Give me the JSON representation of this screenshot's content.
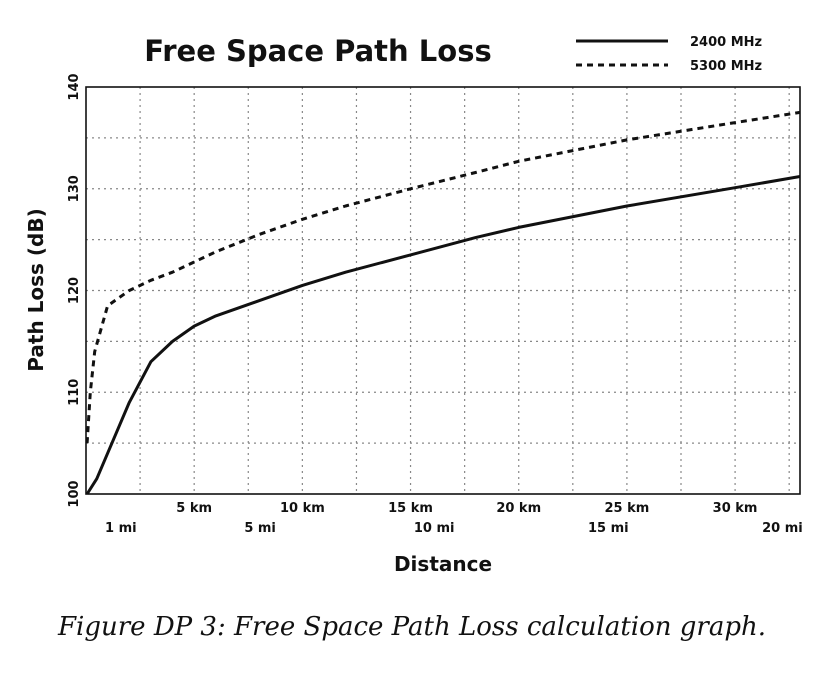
{
  "chart_data": {
    "type": "line",
    "title": "Free Space Path Loss",
    "xlabel": "Distance",
    "ylabel": "Path Loss (dB)",
    "x_unit": "km",
    "xlim": [
      0,
      33
    ],
    "ylim": [
      100,
      140
    ],
    "y_ticks": [
      100,
      110,
      120,
      130,
      140
    ],
    "km_ticks": [
      {
        "value": 5,
        "label": "5 km"
      },
      {
        "value": 10,
        "label": "10 km"
      },
      {
        "value": 15,
        "label": "15 km"
      },
      {
        "value": 20,
        "label": "20 km"
      },
      {
        "value": 25,
        "label": "25 km"
      },
      {
        "value": 30,
        "label": "30 km"
      }
    ],
    "mi_ticks": [
      {
        "value": 1.609,
        "label": "1 mi"
      },
      {
        "value": 8.047,
        "label": "5 mi"
      },
      {
        "value": 16.093,
        "label": "10 mi"
      },
      {
        "value": 24.14,
        "label": "15 mi"
      },
      {
        "value": 32.187,
        "label": "20 mi"
      }
    ],
    "grid": true,
    "legend_position": "top-right",
    "series": [
      {
        "name": "2400 MHz",
        "style": "solid",
        "x": [
          0.05,
          0.5,
          1,
          2,
          3,
          4,
          5,
          6,
          8,
          10,
          12,
          15,
          18,
          20,
          25,
          30,
          33
        ],
        "y": [
          100,
          101.5,
          104,
          109,
          113,
          115,
          116.5,
          117.5,
          119,
          120.5,
          121.8,
          123.5,
          125.2,
          126.2,
          128.3,
          130.1,
          131.2
        ]
      },
      {
        "name": "5300 MHz",
        "style": "dashed",
        "x": [
          0.05,
          0.2,
          0.4,
          0.8,
          1,
          2,
          3,
          4,
          5,
          6,
          8,
          10,
          12,
          15,
          18,
          20,
          25,
          30,
          33
        ],
        "y": [
          105,
          110,
          114,
          117,
          118.5,
          120,
          121,
          121.8,
          122.8,
          123.8,
          125.5,
          127,
          128.3,
          130,
          131.6,
          132.7,
          134.8,
          136.5,
          137.5
        ]
      }
    ]
  },
  "caption": "Figure DP 3: Free Space Path Loss calculation graph."
}
